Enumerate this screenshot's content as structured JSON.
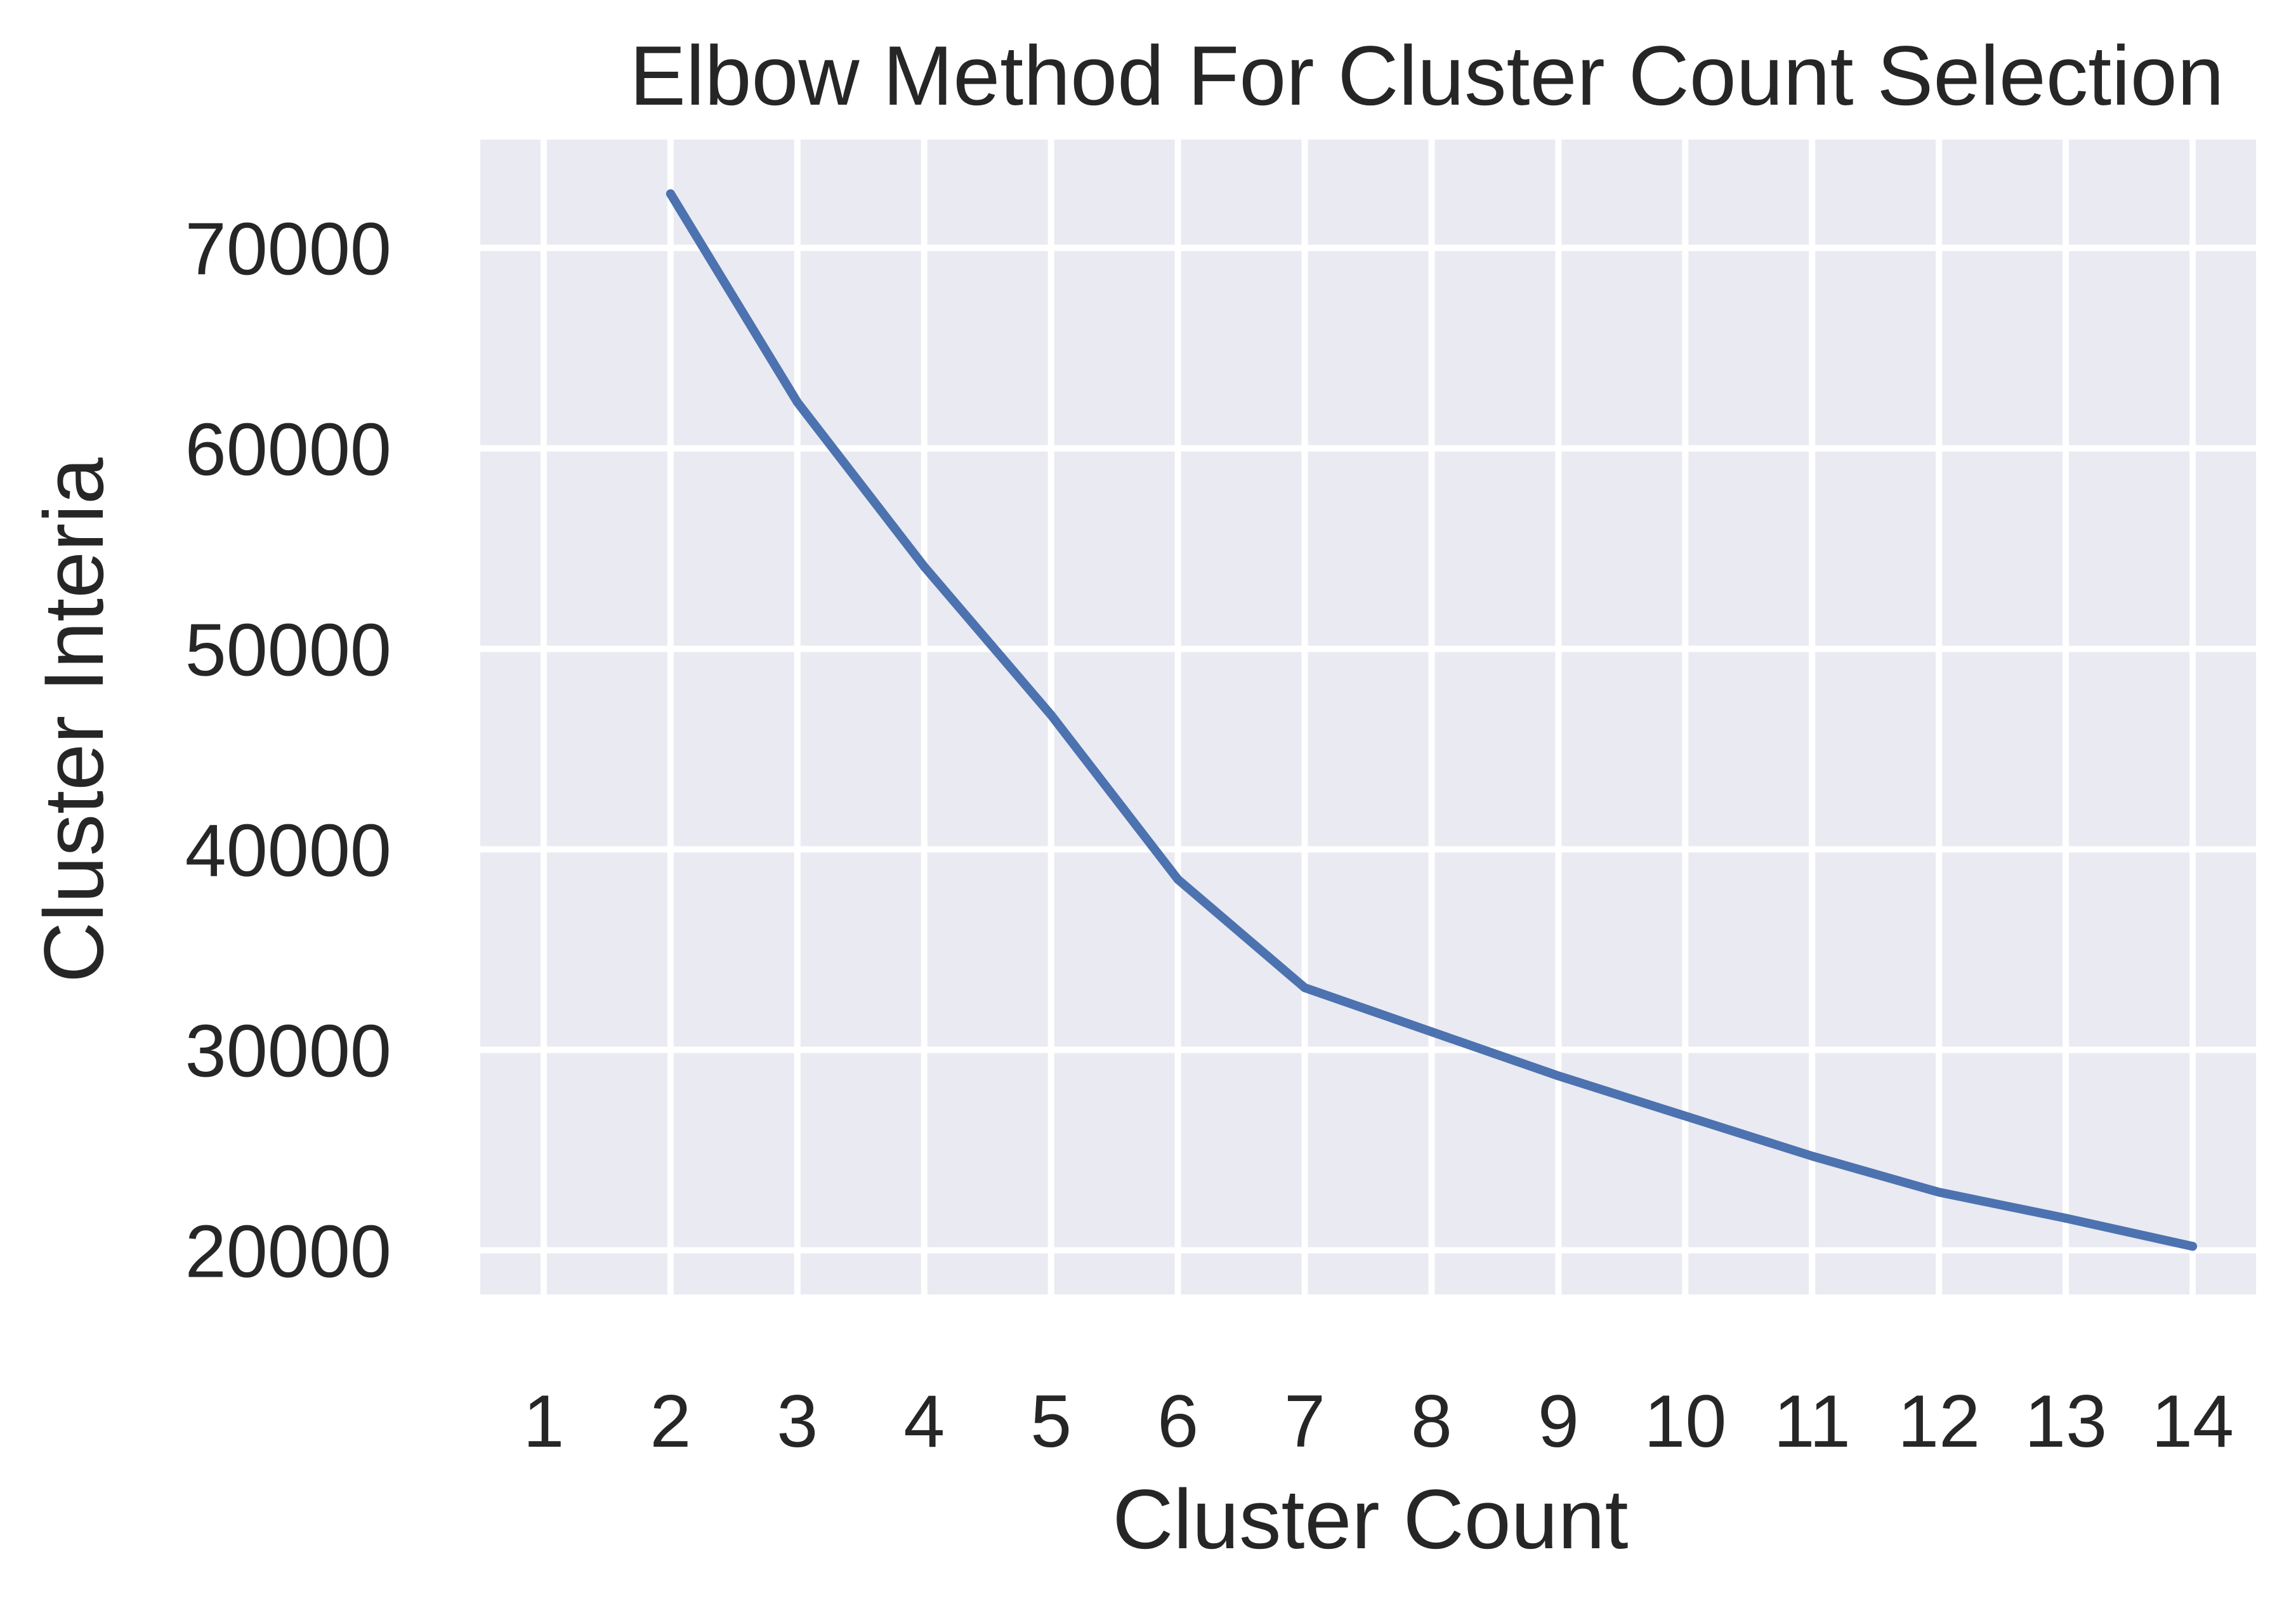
{
  "chart_data": {
    "type": "line",
    "title": "Elbow Method For Cluster Count Selection",
    "xlabel": "Cluster Count",
    "ylabel": "Cluster Interia",
    "x_ticks": [
      "1",
      "2",
      "3",
      "4",
      "5",
      "6",
      "7",
      "8",
      "9",
      "10",
      "11",
      "12",
      "13",
      "14"
    ],
    "y_ticks": [
      "20000",
      "30000",
      "40000",
      "50000",
      "60000",
      "70000"
    ],
    "xlim": [
      0.5,
      14.5
    ],
    "ylim": [
      17800,
      75400
    ],
    "grid": true,
    "series": [
      {
        "x": [
          2,
          3,
          4,
          5,
          6,
          7,
          8,
          9,
          10,
          11,
          12,
          13,
          14
        ],
        "values": [
          72700,
          62300,
          54100,
          46700,
          38500,
          33100,
          30900,
          28700,
          26700,
          24700,
          22900,
          21600,
          20200
        ],
        "color": "#4c72b0"
      }
    ],
    "background_color": "#eaeaf2",
    "grid_color": "#ffffff",
    "text_color": "#262626"
  }
}
